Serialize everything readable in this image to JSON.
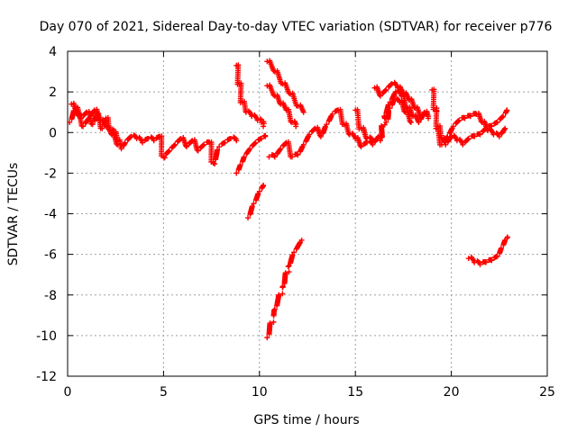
{
  "chart_data": {
    "type": "scatter",
    "title": "Day 070 of 2021, Sidereal Day-to-day VTEC variation (SDTVAR) for receiver p776",
    "xlabel": "GPS time / hours",
    "ylabel": "SDTVAR / TECUs",
    "xlim": [
      0,
      25
    ],
    "ylim": [
      -12,
      4
    ],
    "x_ticks": [
      0,
      5,
      10,
      15,
      20,
      25
    ],
    "y_ticks": [
      -12,
      -10,
      -8,
      -6,
      -4,
      -2,
      0,
      2,
      4
    ],
    "grid": true,
    "marker": "plus",
    "color": "#ff0000",
    "series": [
      {
        "name": "SDTVAR",
        "segments": [
          [
            [
              0.1,
              0.5
            ],
            [
              0.4,
              1.2
            ],
            [
              0.7,
              0.7
            ],
            [
              1.0,
              1.0
            ],
            [
              1.3,
              0.4
            ],
            [
              1.5,
              0.9
            ],
            [
              1.8,
              0.2
            ],
            [
              2.0,
              0.7
            ],
            [
              2.2,
              0.1
            ],
            [
              2.4,
              0.0
            ],
            [
              2.6,
              -0.4
            ],
            [
              2.8,
              -0.8
            ],
            [
              3.0,
              -0.5
            ],
            [
              3.3,
              -0.2
            ],
            [
              3.6,
              -0.3
            ],
            [
              3.9,
              -0.5
            ],
            [
              4.2,
              -0.3
            ],
            [
              4.5,
              -0.4
            ],
            [
              4.8,
              -0.2
            ],
            [
              5.0,
              -1.2
            ],
            [
              5.3,
              -0.9
            ],
            [
              5.6,
              -0.6
            ],
            [
              5.9,
              -0.3
            ],
            [
              6.2,
              -0.7
            ],
            [
              6.5,
              -0.4
            ],
            [
              6.8,
              -0.9
            ],
            [
              7.1,
              -0.6
            ],
            [
              7.4,
              -0.5
            ],
            [
              7.6,
              -1.5
            ],
            [
              7.9,
              -0.7
            ],
            [
              8.2,
              -0.5
            ],
            [
              8.5,
              -0.3
            ],
            [
              8.8,
              -0.4
            ]
          ],
          [
            [
              0.2,
              1.4
            ],
            [
              0.5,
              0.9
            ],
            [
              0.8,
              0.3
            ],
            [
              1.1,
              0.7
            ],
            [
              1.4,
              1.1
            ],
            [
              1.7,
              0.6
            ],
            [
              2.0,
              0.3
            ],
            [
              2.3,
              -0.1
            ],
            [
              2.6,
              -0.6
            ]
          ],
          [
            [
              8.8,
              3.3
            ],
            [
              8.95,
              2.4
            ],
            [
              9.1,
              1.5
            ],
            [
              9.3,
              1.0
            ],
            [
              9.6,
              0.8
            ],
            [
              9.9,
              0.6
            ],
            [
              10.1,
              0.5
            ],
            [
              10.2,
              0.3
            ]
          ],
          [
            [
              8.8,
              -2.0
            ],
            [
              9.0,
              -1.6
            ],
            [
              9.2,
              -1.2
            ],
            [
              9.5,
              -0.8
            ],
            [
              9.8,
              -0.5
            ],
            [
              10.1,
              -0.3
            ],
            [
              10.3,
              -0.2
            ]
          ],
          [
            [
              9.4,
              -4.2
            ],
            [
              9.7,
              -3.5
            ],
            [
              10.0,
              -2.9
            ],
            [
              10.2,
              -2.6
            ]
          ],
          [
            [
              10.4,
              -10.1
            ],
            [
              10.8,
              -8.7
            ],
            [
              11.2,
              -7.6
            ],
            [
              11.5,
              -6.6
            ],
            [
              11.8,
              -5.9
            ],
            [
              12.2,
              -5.3
            ]
          ],
          [
            [
              10.4,
              3.5
            ],
            [
              10.8,
              3.0
            ],
            [
              11.2,
              2.4
            ],
            [
              11.6,
              1.9
            ],
            [
              12.0,
              1.3
            ],
            [
              12.3,
              1.0
            ]
          ],
          [
            [
              10.4,
              2.3
            ],
            [
              10.8,
              1.8
            ],
            [
              11.1,
              1.4
            ],
            [
              11.4,
              1.1
            ],
            [
              11.7,
              0.5
            ],
            [
              11.9,
              0.3
            ]
          ],
          [
            [
              10.5,
              -1.2
            ],
            [
              10.8,
              -1.2
            ],
            [
              11.1,
              -0.8
            ],
            [
              11.4,
              -0.5
            ],
            [
              11.7,
              -1.2
            ],
            [
              12.0,
              -1.1
            ],
            [
              12.3,
              -0.6
            ],
            [
              12.6,
              -0.1
            ],
            [
              12.9,
              0.2
            ],
            [
              13.2,
              -0.2
            ],
            [
              13.5,
              0.4
            ],
            [
              13.8,
              0.9
            ],
            [
              14.1,
              1.1
            ],
            [
              14.4,
              0.4
            ],
            [
              14.7,
              -0.1
            ],
            [
              15.0,
              -0.3
            ],
            [
              15.3,
              -0.7
            ],
            [
              15.6,
              -0.5
            ],
            [
              15.9,
              -0.6
            ],
            [
              16.2,
              -0.2
            ],
            [
              16.3,
              -0.4
            ],
            [
              16.5,
              0.8
            ],
            [
              16.8,
              1.5
            ],
            [
              17.1,
              2.0
            ],
            [
              17.4,
              1.8
            ],
            [
              17.7,
              1.2
            ],
            [
              18.0,
              0.8
            ],
            [
              18.3,
              0.5
            ],
            [
              18.6,
              1.0
            ],
            [
              18.8,
              0.7
            ]
          ],
          [
            [
              15.0,
              1.1
            ],
            [
              15.3,
              0.2
            ],
            [
              15.6,
              -0.3
            ],
            [
              15.9,
              -0.4
            ]
          ],
          [
            [
              16.0,
              2.2
            ],
            [
              16.3,
              1.8
            ],
            [
              16.6,
              2.1
            ],
            [
              16.9,
              2.4
            ],
            [
              17.2,
              2.2
            ],
            [
              17.5,
              1.9
            ],
            [
              17.8,
              1.6
            ],
            [
              18.1,
              1.2
            ],
            [
              18.4,
              0.8
            ],
            [
              18.7,
              0.9
            ]
          ],
          [
            [
              16.6,
              0.5
            ],
            [
              16.8,
              1.2
            ],
            [
              17.0,
              1.6
            ],
            [
              17.3,
              1.5
            ],
            [
              17.6,
              1.0
            ],
            [
              17.9,
              0.5
            ]
          ],
          [
            [
              19.0,
              2.1
            ],
            [
              19.3,
              0.3
            ],
            [
              19.5,
              -0.3
            ],
            [
              19.7,
              -0.6
            ],
            [
              20.0,
              -0.2
            ],
            [
              20.3,
              -0.4
            ],
            [
              20.6,
              -0.6
            ],
            [
              20.9,
              -0.3
            ],
            [
              21.2,
              -0.2
            ],
            [
              21.5,
              -0.1
            ],
            [
              21.8,
              0.2
            ],
            [
              22.1,
              0.3
            ],
            [
              22.4,
              0.5
            ],
            [
              22.7,
              0.8
            ],
            [
              22.9,
              1.1
            ]
          ],
          [
            [
              19.2,
              0.2
            ],
            [
              19.5,
              -0.6
            ],
            [
              19.8,
              -0.2
            ],
            [
              20.1,
              0.3
            ],
            [
              20.4,
              0.6
            ],
            [
              20.7,
              0.7
            ],
            [
              21.0,
              0.8
            ],
            [
              21.3,
              0.9
            ],
            [
              21.6,
              0.5
            ],
            [
              21.9,
              0.1
            ],
            [
              22.2,
              -0.1
            ],
            [
              22.5,
              -0.2
            ],
            [
              22.8,
              0.2
            ]
          ],
          [
            [
              20.9,
              -6.2
            ],
            [
              21.2,
              -6.4
            ],
            [
              21.5,
              -6.5
            ],
            [
              21.8,
              -6.4
            ],
            [
              22.1,
              -6.3
            ],
            [
              22.4,
              -6.1
            ],
            [
              22.6,
              -5.7
            ],
            [
              22.8,
              -5.3
            ],
            [
              22.9,
              -5.2
            ]
          ]
        ]
      }
    ]
  }
}
